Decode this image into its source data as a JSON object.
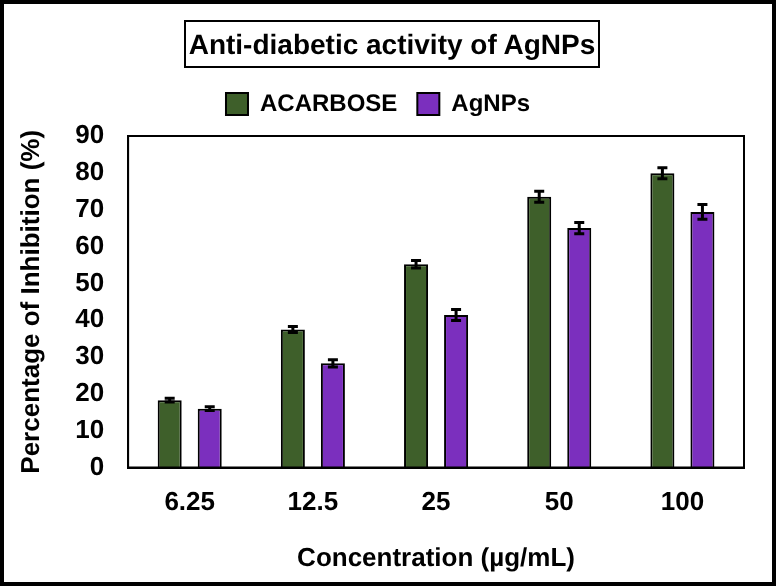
{
  "chart_data": {
    "type": "bar",
    "title": "Anti-diabetic activity of AgNPs",
    "xlabel": "Concentration (µg/mL)",
    "ylabel": "Percentage of Inhibition (%)",
    "categories": [
      "6.25",
      "12.5",
      "25",
      "50",
      "100"
    ],
    "series": [
      {
        "name": "ACARBOSE",
        "color": "#3e5f2a",
        "values": [
          18.3,
          37.5,
          55.2,
          73.5,
          79.9
        ],
        "errors": [
          0.5,
          0.8,
          1,
          1.5,
          1.5
        ]
      },
      {
        "name": "AgNPs",
        "color": "#7b2fbe",
        "values": [
          16,
          28.3,
          41.4,
          65,
          69.4
        ],
        "errors": [
          0.5,
          1,
          1.5,
          1.5,
          2
        ]
      }
    ],
    "ylim": [
      0,
      90
    ],
    "yticks": [
      0,
      10,
      20,
      30,
      40,
      50,
      60,
      70,
      80,
      90
    ],
    "grid": false,
    "legend": "top"
  }
}
